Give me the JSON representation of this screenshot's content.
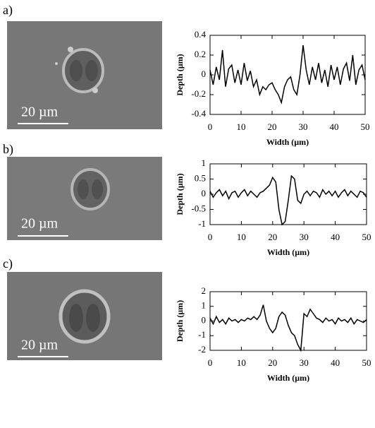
{
  "panels": [
    {
      "label": "a)",
      "scale_bar": "20 µm"
    },
    {
      "label": "b)",
      "scale_bar": "20 µm"
    },
    {
      "label": "c)",
      "scale_bar": "20 µm"
    }
  ],
  "chart_data": [
    {
      "type": "line",
      "x_label": "Width (µm)",
      "y_label": "Depth (µm)",
      "color": "#000000",
      "xlim": [
        0,
        50
      ],
      "xticks": [
        0,
        10,
        20,
        30,
        40,
        50
      ],
      "ylim": [
        -0.4,
        0.4
      ],
      "yticks": [
        -0.4,
        -0.2,
        0,
        0.2,
        0.4
      ],
      "x": [
        0,
        1,
        2,
        3,
        4,
        5,
        6,
        7,
        8,
        9,
        10,
        11,
        12,
        13,
        14,
        15,
        16,
        17,
        18,
        19,
        20,
        21,
        22,
        23,
        24,
        25,
        26,
        27,
        28,
        29,
        30,
        31,
        32,
        33,
        34,
        35,
        36,
        37,
        38,
        39,
        40,
        41,
        42,
        43,
        44,
        45,
        46,
        47,
        48,
        49,
        50
      ],
      "values": [
        0.05,
        -0.1,
        0.08,
        -0.05,
        0.25,
        -0.12,
        0.06,
        0.1,
        -0.08,
        0.05,
        -0.1,
        0.12,
        -0.06,
        0.04,
        -0.12,
        -0.05,
        -0.2,
        -0.12,
        -0.15,
        -0.1,
        -0.08,
        -0.15,
        -0.2,
        -0.28,
        -0.12,
        -0.05,
        -0.02,
        -0.15,
        -0.2,
        0,
        0.3,
        0.05,
        -0.1,
        0.08,
        -0.05,
        0.12,
        -0.08,
        0.05,
        -0.12,
        0.1,
        -0.05,
        0.08,
        -0.1,
        0.06,
        0.12,
        -0.06,
        0.2,
        -0.1,
        0.05,
        0.1,
        -0.05
      ]
    },
    {
      "type": "line",
      "x_label": "Width (µm)",
      "y_label": "Depth (µm)",
      "color": "#000000",
      "xlim": [
        0,
        50
      ],
      "xticks": [
        0,
        10,
        20,
        30,
        40,
        50
      ],
      "ylim": [
        -1,
        1
      ],
      "yticks": [
        -1,
        -0.5,
        0,
        0.5,
        1
      ],
      "x": [
        0,
        1,
        2,
        3,
        4,
        5,
        6,
        7,
        8,
        9,
        10,
        11,
        12,
        13,
        14,
        15,
        16,
        17,
        18,
        19,
        20,
        21,
        22,
        23,
        24,
        25,
        26,
        27,
        28,
        29,
        30,
        31,
        32,
        33,
        34,
        35,
        36,
        37,
        38,
        39,
        40,
        41,
        42,
        43,
        44,
        45,
        46,
        47,
        48,
        49,
        50
      ],
      "values": [
        0.1,
        -0.1,
        0.05,
        0.15,
        -0.05,
        0.1,
        -0.15,
        0.05,
        0.1,
        -0.1,
        0.05,
        0.15,
        -0.05,
        0.1,
        0,
        -0.1,
        0.05,
        0.1,
        0.2,
        0.3,
        0.55,
        0.4,
        -0.5,
        -1,
        -0.9,
        -0.2,
        0.6,
        0.5,
        -0.2,
        -0.3,
        0,
        0.1,
        -0.05,
        0.1,
        0.05,
        -0.1,
        0.15,
        0,
        0.1,
        -0.05,
        0.1,
        -0.1,
        0.05,
        0.15,
        -0.05,
        0.1,
        0,
        -0.1,
        0.1,
        0.05,
        -0.1
      ]
    },
    {
      "type": "line",
      "x_label": "Width (µm)",
      "y_label": "Depth (µm)",
      "color": "#000000",
      "xlim": [
        0,
        50
      ],
      "xticks": [
        0,
        10,
        20,
        30,
        40,
        50
      ],
      "ylim": [
        -2,
        2
      ],
      "yticks": [
        -2,
        -1,
        0,
        1,
        2
      ],
      "x": [
        0,
        1,
        2,
        3,
        4,
        5,
        6,
        7,
        8,
        9,
        10,
        11,
        12,
        13,
        14,
        15,
        16,
        17,
        18,
        19,
        20,
        21,
        22,
        23,
        24,
        25,
        26,
        27,
        28,
        29,
        30,
        31,
        32,
        33,
        34,
        35,
        36,
        37,
        38,
        39,
        40,
        41,
        42,
        43,
        44,
        45,
        46,
        47,
        48,
        49,
        50
      ],
      "values": [
        0.2,
        -0.2,
        0.3,
        -0.1,
        0.1,
        -0.2,
        0.2,
        0,
        0.1,
        -0.1,
        0.1,
        0,
        0.2,
        0.1,
        0.3,
        0.1,
        0.4,
        1.1,
        0,
        -0.5,
        -0.8,
        -0.5,
        0.3,
        0.6,
        0.4,
        -0.3,
        -0.8,
        -1,
        -1.6,
        -2,
        0.5,
        0.3,
        0.8,
        0.5,
        0.2,
        0.1,
        -0.1,
        0.2,
        0,
        0.1,
        -0.2,
        0.2,
        0,
        0.1,
        -0.1,
        0.2,
        -0.2,
        0.1,
        0,
        -0.1,
        0.1
      ]
    }
  ]
}
